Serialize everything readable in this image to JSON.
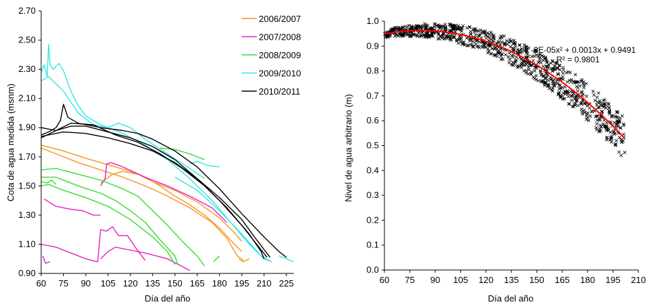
{
  "colors": {
    "2006/2007": "#f7941d",
    "2007/2008": "#e620c8",
    "2008/2009": "#33dd33",
    "2009/2010": "#33e6e6",
    "2010/2011": "#000000",
    "fit": "#ff0000",
    "points": "#000000"
  },
  "chart_data": [
    {
      "type": "line",
      "title": "",
      "xlabel": "Día del año",
      "ylabel": "Cota de agua medida (msnm)",
      "xlim": [
        60,
        230
      ],
      "ylim": [
        0.9,
        2.7
      ],
      "x_ticks": [
        60,
        75,
        90,
        105,
        120,
        135,
        150,
        165,
        180,
        195,
        210,
        225
      ],
      "y_ticks": [
        "0.90",
        "1.10",
        "1.30",
        "1.50",
        "1.70",
        "1.90",
        "2.10",
        "2.30",
        "2.50",
        "2.70"
      ],
      "legend_position": "top-right",
      "legend": [
        "2006/2007",
        "2007/2008",
        "2008/2009",
        "2009/2010",
        "2010/2011"
      ],
      "series": [
        {
          "name": "2006/2007",
          "lines": [
            [
              [
                60,
                1.78
              ],
              [
                75,
                1.74
              ],
              [
                90,
                1.69
              ],
              [
                100,
                1.66
              ],
              [
                110,
                1.63
              ],
              [
                120,
                1.6
              ],
              [
                130,
                1.56
              ],
              [
                140,
                1.5
              ],
              [
                150,
                1.43
              ],
              [
                160,
                1.37
              ],
              [
                170,
                1.3
              ],
              [
                180,
                1.21
              ],
              [
                190,
                1.1
              ],
              [
                195,
                1.05
              ]
            ],
            [
              [
                60,
                1.76
              ],
              [
                70,
                1.72
              ],
              [
                85,
                1.66
              ],
              [
                100,
                1.61
              ],
              [
                115,
                1.56
              ],
              [
                130,
                1.5
              ],
              [
                145,
                1.43
              ],
              [
                160,
                1.35
              ],
              [
                175,
                1.25
              ],
              [
                185,
                1.14
              ],
              [
                192,
                1.02
              ],
              [
                196,
                0.99
              ]
            ],
            [
              [
                100,
                1.52
              ],
              [
                108,
                1.58
              ],
              [
                115,
                1.6
              ],
              [
                125,
                1.58
              ],
              [
                135,
                1.53
              ],
              [
                150,
                1.47
              ],
              [
                165,
                1.39
              ],
              [
                180,
                1.28
              ],
              [
                190,
                1.18
              ],
              [
                195,
                1.12
              ]
            ],
            [
              [
                193,
                1.0
              ],
              [
                196,
                0.98
              ],
              [
                200,
                1.0
              ]
            ]
          ]
        },
        {
          "name": "2007/2008",
          "lines": [
            [
              [
                100,
                1.5
              ],
              [
                103,
                1.55
              ],
              [
                104,
                1.65
              ],
              [
                107,
                1.66
              ],
              [
                115,
                1.63
              ],
              [
                130,
                1.56
              ],
              [
                145,
                1.5
              ],
              [
                160,
                1.43
              ],
              [
                175,
                1.35
              ],
              [
                185,
                1.25
              ]
            ],
            [
              [
                62,
                1.41
              ],
              [
                70,
                1.36
              ],
              [
                80,
                1.34
              ],
              [
                88,
                1.33
              ],
              [
                95,
                1.3
              ],
              [
                100,
                1.3
              ]
            ],
            [
              [
                60,
                1.1
              ],
              [
                70,
                1.08
              ],
              [
                80,
                1.04
              ],
              [
                90,
                1.0
              ],
              [
                98,
                0.98
              ],
              [
                100,
                1.2
              ],
              [
                104,
                1.19
              ],
              [
                108,
                1.22
              ],
              [
                112,
                1.16
              ],
              [
                118,
                1.16
              ],
              [
                124,
                1.07
              ],
              [
                130,
                0.99
              ]
            ],
            [
              [
                100,
                1.0
              ],
              [
                105,
                1.05
              ],
              [
                110,
                1.08
              ],
              [
                120,
                1.06
              ],
              [
                130,
                1.04
              ],
              [
                145,
                1.0
              ],
              [
                160,
                0.92
              ]
            ],
            [
              [
                61,
                1.02
              ],
              [
                63,
                0.97
              ],
              [
                66,
                0.98
              ]
            ]
          ]
        },
        {
          "name": "2008/2009",
          "lines": [
            [
              [
                60,
                1.61
              ],
              [
                70,
                1.62
              ],
              [
                85,
                1.58
              ],
              [
                100,
                1.54
              ],
              [
                115,
                1.48
              ],
              [
                125,
                1.43
              ],
              [
                135,
                1.33
              ],
              [
                145,
                1.23
              ],
              [
                155,
                1.12
              ],
              [
                165,
                1.02
              ],
              [
                170,
                0.95
              ]
            ],
            [
              [
                60,
                1.56
              ],
              [
                70,
                1.56
              ],
              [
                85,
                1.5
              ],
              [
                100,
                1.45
              ],
              [
                110,
                1.4
              ],
              [
                120,
                1.33
              ],
              [
                130,
                1.25
              ],
              [
                140,
                1.13
              ],
              [
                150,
                1.02
              ],
              [
                152,
                0.96
              ]
            ],
            [
              [
                60,
                1.5
              ],
              [
                65,
                1.51
              ],
              [
                75,
                1.47
              ],
              [
                90,
                1.42
              ],
              [
                105,
                1.36
              ],
              [
                120,
                1.27
              ],
              [
                135,
                1.15
              ],
              [
                145,
                1.05
              ],
              [
                150,
                0.96
              ]
            ],
            [
              [
                60,
                1.53
              ],
              [
                64,
                1.52
              ],
              [
                67,
                1.54
              ],
              [
                70,
                1.51
              ]
            ],
            [
              [
                140,
                1.76
              ],
              [
                150,
                1.75
              ],
              [
                160,
                1.72
              ],
              [
                170,
                1.68
              ]
            ],
            [
              [
                176,
                0.98
              ],
              [
                180,
                1.02
              ]
            ]
          ]
        },
        {
          "name": "2009/2010",
          "lines": [
            [
              [
                60,
                2.28
              ],
              [
                62,
                2.33
              ],
              [
                64,
                2.25
              ],
              [
                65,
                2.47
              ],
              [
                66,
                2.33
              ],
              [
                68,
                2.3
              ],
              [
                70,
                2.32
              ],
              [
                72,
                2.34
              ],
              [
                75,
                2.29
              ],
              [
                80,
                2.15
              ],
              [
                85,
                2.05
              ],
              [
                90,
                1.98
              ],
              [
                100,
                1.92
              ],
              [
                115,
                1.86
              ],
              [
                130,
                1.78
              ],
              [
                145,
                1.68
              ],
              [
                160,
                1.55
              ],
              [
                175,
                1.4
              ],
              [
                190,
                1.22
              ],
              [
                200,
                1.1
              ],
              [
                210,
                1.0
              ],
              [
                215,
                0.98
              ]
            ],
            [
              [
                60,
                2.22
              ],
              [
                65,
                2.25
              ],
              [
                70,
                2.2
              ],
              [
                75,
                2.15
              ],
              [
                85,
                2.0
              ],
              [
                95,
                1.92
              ],
              [
                105,
                1.9
              ],
              [
                112,
                1.93
              ],
              [
                120,
                1.9
              ],
              [
                130,
                1.82
              ],
              [
                145,
                1.72
              ],
              [
                160,
                1.62
              ],
              [
                170,
                1.55
              ]
            ],
            [
              [
                160,
                1.65
              ],
              [
                165,
                1.67
              ],
              [
                172,
                1.64
              ],
              [
                180,
                1.63
              ]
            ],
            [
              [
                150,
                1.56
              ],
              [
                165,
                1.47
              ],
              [
                180,
                1.33
              ],
              [
                195,
                1.17
              ],
              [
                208,
                1.02
              ],
              [
                215,
                0.98
              ]
            ],
            [
              [
                220,
                1.02
              ],
              [
                225,
                1.0
              ],
              [
                230,
                0.98
              ]
            ]
          ]
        },
        {
          "name": "2010/2011",
          "lines": [
            [
              [
                60,
                1.85
              ],
              [
                65,
                1.87
              ],
              [
                70,
                1.9
              ],
              [
                73,
                1.95
              ],
              [
                75,
                2.06
              ],
              [
                78,
                1.97
              ],
              [
                85,
                1.93
              ],
              [
                100,
                1.9
              ],
              [
                115,
                1.88
              ],
              [
                125,
                1.86
              ],
              [
                135,
                1.82
              ],
              [
                150,
                1.74
              ],
              [
                165,
                1.63
              ],
              [
                180,
                1.48
              ],
              [
                195,
                1.31
              ],
              [
                210,
                1.15
              ],
              [
                220,
                1.05
              ],
              [
                225,
                1.01
              ]
            ],
            [
              [
                60,
                1.83
              ],
              [
                70,
                1.88
              ],
              [
                80,
                1.91
              ],
              [
                90,
                1.91
              ],
              [
                105,
                1.87
              ],
              [
                120,
                1.83
              ],
              [
                135,
                1.77
              ],
              [
                150,
                1.68
              ],
              [
                165,
                1.55
              ],
              [
                180,
                1.4
              ],
              [
                195,
                1.23
              ],
              [
                205,
                1.1
              ],
              [
                212,
                1.01
              ]
            ],
            [
              [
                60,
                1.9
              ],
              [
                70,
                1.88
              ],
              [
                80,
                1.93
              ],
              [
                95,
                1.92
              ],
              [
                110,
                1.85
              ],
              [
                125,
                1.8
              ],
              [
                140,
                1.72
              ],
              [
                155,
                1.62
              ],
              [
                170,
                1.5
              ],
              [
                185,
                1.35
              ],
              [
                200,
                1.17
              ],
              [
                208,
                1.05
              ],
              [
                210,
                1.0
              ]
            ],
            [
              [
                60,
                1.84
              ],
              [
                75,
                1.87
              ],
              [
                90,
                1.86
              ],
              [
                105,
                1.83
              ],
              [
                120,
                1.79
              ],
              [
                135,
                1.74
              ],
              [
                150,
                1.66
              ],
              [
                165,
                1.55
              ],
              [
                180,
                1.42
              ],
              [
                195,
                1.27
              ],
              [
                205,
                1.13
              ],
              [
                214,
                1.01
              ]
            ]
          ]
        }
      ]
    },
    {
      "type": "scatter",
      "title": "",
      "xlabel": "Día del año",
      "ylabel": "Nivel de agua arbitrario (m)",
      "xlim": [
        60,
        210
      ],
      "ylim": [
        0.0,
        1.0
      ],
      "x_ticks": [
        60,
        75,
        90,
        105,
        120,
        135,
        150,
        165,
        180,
        195,
        210
      ],
      "y_ticks": [
        "0.0",
        "0.1",
        "0.2",
        "0.3",
        "0.4",
        "0.5",
        "0.6",
        "0.7",
        "0.8",
        "0.9",
        "1.0"
      ],
      "equation": "y = -3E-05x² + 0.0013x + 0.9491",
      "r2": "R² = 0.9801",
      "fit": {
        "a": -3e-05,
        "b": 0.0013,
        "c": 0.9491,
        "x0": 60,
        "x1": 202
      },
      "points": {
        "marker": "x",
        "x_range": [
          60,
          202
        ],
        "spread_approx": 0.05,
        "count_approx": 900
      }
    }
  ]
}
